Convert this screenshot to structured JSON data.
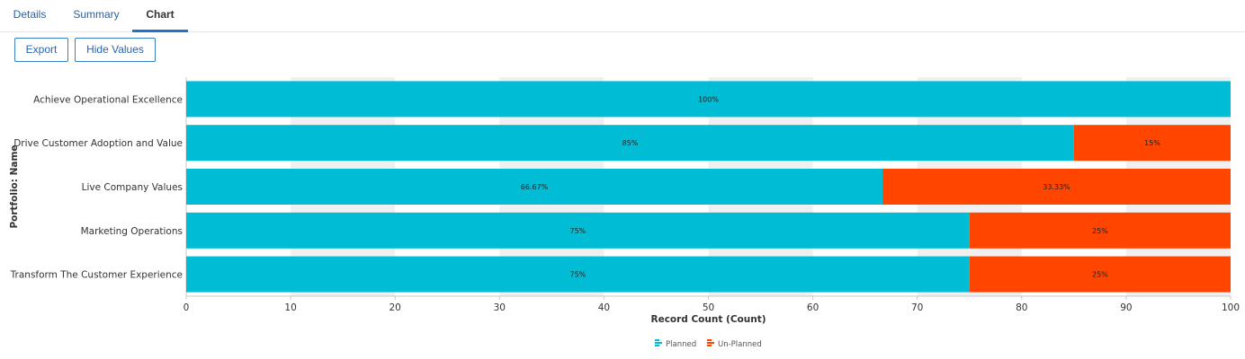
{
  "tabs": [
    {
      "label": "Details",
      "active": false
    },
    {
      "label": "Summary",
      "active": false
    },
    {
      "label": "Chart",
      "active": true
    }
  ],
  "toolbar": {
    "export_label": "Export",
    "hide_values_label": "Hide Values"
  },
  "colors": {
    "accent": "#1f74c9",
    "planned": "#00bcd4",
    "unplanned": "#ff4500",
    "band": "#f0f0f0"
  },
  "chart_data": {
    "type": "bar",
    "orientation": "horizontal",
    "stacked": true,
    "categories": [
      "Achieve Operational Excellence",
      "Drive Customer Adoption and Value",
      "Live Company Values",
      "Marketing Operations",
      "Transform The Customer Experience"
    ],
    "series": [
      {
        "name": "Planned",
        "color": "#00bcd4",
        "values": [
          100,
          85,
          66.67,
          75,
          75
        ],
        "labels": [
          "100%",
          "85%",
          "66.67%",
          "75%",
          "75%"
        ]
      },
      {
        "name": "Un-Planned",
        "color": "#ff4500",
        "values": [
          0,
          15,
          33.33,
          25,
          25
        ],
        "labels": [
          "",
          "15%",
          "33.33%",
          "25%",
          "25%"
        ]
      }
    ],
    "xlabel": "Record Count (Count)",
    "ylabel": "Portfolio: Name",
    "xlim": [
      0,
      100
    ],
    "xticks": [
      0,
      10,
      20,
      30,
      40,
      50,
      60,
      70,
      80,
      90,
      100
    ],
    "grid": "alternating vertical bands",
    "legend_position": "bottom-center"
  }
}
